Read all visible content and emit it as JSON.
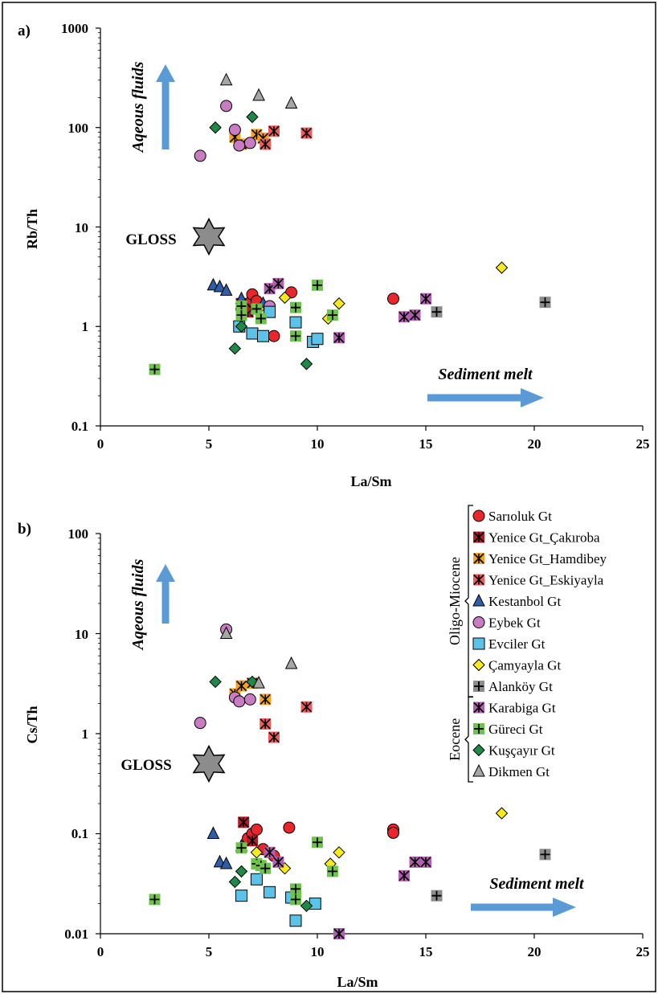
{
  "panels": {
    "a": {
      "label": "a)",
      "xlabel": "La/Sm",
      "ylabel": "Rb/Th",
      "xticks": [
        "0",
        "5",
        "10",
        "15",
        "20",
        "25"
      ],
      "yticks": [
        "1000",
        "100",
        "10",
        "1",
        "0.1"
      ]
    },
    "b": {
      "label": "b)",
      "xlabel": "La/Sm",
      "ylabel": "Cs/Th",
      "xticks": [
        "0",
        "5",
        "10",
        "15",
        "20",
        "25"
      ],
      "yticks": [
        "100",
        "10",
        "1",
        "0.1",
        "0.01"
      ]
    }
  },
  "annotations": {
    "aqueous": "Aqeous fluids",
    "sediment": "Sediment melt",
    "gloss": "GLOSS"
  },
  "colors": {
    "arrow": "#5b9bd5",
    "gloss": "#8c8c8c"
  },
  "legend": {
    "groups": [
      {
        "name": "Oligo-Miocene",
        "items": [
          0,
          1,
          2,
          3,
          4,
          5,
          6,
          7,
          8
        ]
      },
      {
        "name": "Eocene",
        "items": [
          9,
          10,
          11,
          12
        ]
      }
    ]
  },
  "chart_data": [
    {
      "type": "scatter",
      "xlabel": "La/Sm",
      "ylabel": "Rb/Th",
      "xlim": [
        0,
        25
      ],
      "ylim": [
        0.1,
        1000
      ],
      "yscale": "log",
      "reference": {
        "name": "GLOSS",
        "x": 5,
        "y": 8
      },
      "series": [
        {
          "name": "Sarıoluk Gt",
          "marker": "circle",
          "color": "#e8262b",
          "points": [
            [
              6.5,
              1.5
            ],
            [
              6.8,
              1.7
            ],
            [
              7.0,
              2.1
            ],
            [
              7.2,
              1.8
            ],
            [
              8.0,
              0.8
            ],
            [
              8.8,
              2.2
            ],
            [
              13.5,
              1.9
            ]
          ]
        },
        {
          "name": "Yenice Gt_Çakıroba",
          "marker": "xsquare",
          "color": "#b01e23",
          "points": [
            [
              6.5,
              1.7
            ],
            [
              6.8,
              1.4
            ],
            [
              7.0,
              1.5
            ]
          ]
        },
        {
          "name": "Yenice Gt_Hamdibey",
          "marker": "xsquare",
          "color": "#f6a21a",
          "points": [
            [
              6.2,
              80
            ],
            [
              6.5,
              68
            ],
            [
              7.2,
              85
            ],
            [
              7.5,
              78
            ]
          ]
        },
        {
          "name": "Yenice Gt_Eskiyayla",
          "marker": "xsquare",
          "color": "#ef5b5b",
          "points": [
            [
              7.6,
              68
            ],
            [
              8.0,
              92
            ],
            [
              9.5,
              88
            ]
          ]
        },
        {
          "name": "Kestanbol Gt",
          "marker": "triangle",
          "color": "#2f5ea8",
          "points": [
            [
              5.2,
              2.6
            ],
            [
              5.5,
              2.5
            ],
            [
              5.8,
              2.3
            ],
            [
              6.5,
              1.9
            ],
            [
              7.5,
              1.7
            ]
          ]
        },
        {
          "name": "Eybek Gt",
          "marker": "circle",
          "color": "#c87dc2",
          "points": [
            [
              4.6,
              52
            ],
            [
              5.8,
              165
            ],
            [
              6.2,
              95
            ],
            [
              6.4,
              66
            ],
            [
              6.9,
              70
            ],
            [
              7.8,
              1.6
            ]
          ]
        },
        {
          "name": "Evciler Gt",
          "marker": "square",
          "color": "#5bc3e8",
          "points": [
            [
              6.4,
              1.0
            ],
            [
              7.0,
              0.85
            ],
            [
              7.5,
              0.8
            ],
            [
              7.8,
              1.4
            ],
            [
              9.0,
              1.1
            ],
            [
              9.8,
              0.7
            ],
            [
              10.0,
              0.75
            ]
          ]
        },
        {
          "name": "Çamyayla Gt",
          "marker": "diamond",
          "color": "#f7ea1d",
          "points": [
            [
              7.3,
              1.5
            ],
            [
              8.5,
              1.95
            ],
            [
              10.5,
              1.2
            ],
            [
              11.0,
              1.7
            ],
            [
              18.5,
              3.9
            ]
          ]
        },
        {
          "name": "Alanköy Gt",
          "marker": "plussquare",
          "color": "#8c8c8c",
          "points": [
            [
              15.5,
              1.4
            ],
            [
              20.5,
              1.75
            ]
          ]
        },
        {
          "name": "Karabiga Gt",
          "marker": "xsquare",
          "color": "#b25fb0",
          "points": [
            [
              7.8,
              2.4
            ],
            [
              8.2,
              2.7
            ],
            [
              11.0,
              0.77
            ],
            [
              14.0,
              1.25
            ],
            [
              14.5,
              1.3
            ],
            [
              15.0,
              1.9
            ]
          ]
        },
        {
          "name": "Güreci Gt",
          "marker": "plussquare",
          "color": "#70c24f",
          "points": [
            [
              2.5,
              0.37
            ],
            [
              6.5,
              1.6
            ],
            [
              6.5,
              1.3
            ],
            [
              7.2,
              1.5
            ],
            [
              7.4,
              1.2
            ],
            [
              9.0,
              1.55
            ],
            [
              9.0,
              0.8
            ],
            [
              10.0,
              2.6
            ],
            [
              10.7,
              1.3
            ]
          ]
        },
        {
          "name": "Kuşçayır Gt",
          "marker": "diamond",
          "color": "#1f8a48",
          "points": [
            [
              5.3,
              100
            ],
            [
              6.2,
              0.6
            ],
            [
              6.5,
              1.0
            ],
            [
              7.0,
              128
            ],
            [
              9.5,
              0.42
            ]
          ]
        },
        {
          "name": "Dikmen Gt",
          "marker": "triangle",
          "color": "#a6a6a6",
          "points": [
            [
              5.8,
              300
            ],
            [
              7.3,
              210
            ],
            [
              8.8,
              175
            ]
          ]
        }
      ]
    },
    {
      "type": "scatter",
      "xlabel": "La/Sm",
      "ylabel": "Cs/Th",
      "xlim": [
        0,
        25
      ],
      "ylim": [
        0.01,
        100
      ],
      "yscale": "log",
      "reference": {
        "name": "GLOSS",
        "x": 5,
        "y": 0.5
      },
      "series": [
        {
          "name": "Sarıoluk Gt",
          "marker": "circle",
          "color": "#e8262b",
          "points": [
            [
              6.8,
              0.09
            ],
            [
              7.0,
              0.1
            ],
            [
              7.2,
              0.11
            ],
            [
              7.5,
              0.07
            ],
            [
              8.0,
              0.06
            ],
            [
              8.7,
              0.115
            ],
            [
              13.5,
              0.11
            ],
            [
              13.5,
              0.102
            ]
          ]
        },
        {
          "name": "Yenice Gt_Çakıroba",
          "marker": "xsquare",
          "color": "#b01e23",
          "points": [
            [
              6.6,
              0.13
            ],
            [
              7.0,
              0.085
            ]
          ]
        },
        {
          "name": "Yenice Gt_Hamdibey",
          "marker": "xsquare",
          "color": "#f6a21a",
          "points": [
            [
              6.2,
              2.5
            ],
            [
              6.5,
              3.0
            ],
            [
              7.0,
              3.2
            ],
            [
              7.6,
              2.2
            ]
          ]
        },
        {
          "name": "Yenice Gt_Eskiyayla",
          "marker": "xsquare",
          "color": "#ef5b5b",
          "points": [
            [
              7.6,
              1.25
            ],
            [
              8.0,
              0.92
            ],
            [
              9.5,
              1.85
            ]
          ]
        },
        {
          "name": "Kestanbol Gt",
          "marker": "triangle",
          "color": "#2f5ea8",
          "points": [
            [
              5.2,
              0.1
            ],
            [
              5.5,
              0.052
            ],
            [
              5.8,
              0.05
            ],
            [
              6.5,
              0.075
            ]
          ]
        },
        {
          "name": "Eybek Gt",
          "marker": "circle",
          "color": "#c87dc2",
          "points": [
            [
              4.6,
              1.28
            ],
            [
              5.8,
              11
            ],
            [
              6.2,
              2.3
            ],
            [
              6.4,
              2.1
            ],
            [
              6.9,
              2.2
            ]
          ]
        },
        {
          "name": "Evciler Gt",
          "marker": "square",
          "color": "#5bc3e8",
          "points": [
            [
              6.5,
              0.024
            ],
            [
              7.2,
              0.035
            ],
            [
              7.8,
              0.026
            ],
            [
              8.8,
              0.023
            ],
            [
              9.0,
              0.0135
            ],
            [
              9.9,
              0.02
            ]
          ]
        },
        {
          "name": "Çamyayla Gt",
          "marker": "diamond",
          "color": "#f7ea1d",
          "points": [
            [
              7.2,
              0.065
            ],
            [
              8.5,
              0.045
            ],
            [
              10.6,
              0.05
            ],
            [
              11.0,
              0.065
            ],
            [
              18.5,
              0.16
            ]
          ]
        },
        {
          "name": "Alanköy Gt",
          "marker": "plussquare",
          "color": "#8c8c8c",
          "points": [
            [
              15.5,
              0.024
            ],
            [
              20.5,
              0.062
            ]
          ]
        },
        {
          "name": "Karabiga Gt",
          "marker": "xsquare",
          "color": "#b25fb0",
          "points": [
            [
              7.8,
              0.065
            ],
            [
              8.2,
              0.052
            ],
            [
              11.0,
              0.01
            ],
            [
              14.0,
              0.038
            ],
            [
              14.5,
              0.052
            ],
            [
              15.0,
              0.052
            ]
          ]
        },
        {
          "name": "Güreci Gt",
          "marker": "plussquare",
          "color": "#70c24f",
          "points": [
            [
              2.5,
              0.022
            ],
            [
              6.5,
              0.072
            ],
            [
              7.2,
              0.05
            ],
            [
              7.4,
              0.048
            ],
            [
              7.6,
              0.045
            ],
            [
              9.0,
              0.028
            ],
            [
              9.0,
              0.022
            ],
            [
              10.0,
              0.082
            ],
            [
              10.7,
              0.042
            ]
          ]
        },
        {
          "name": "Kuşçayır Gt",
          "marker": "diamond",
          "color": "#1f8a48",
          "points": [
            [
              5.3,
              3.3
            ],
            [
              6.2,
              0.033
            ],
            [
              6.5,
              0.042
            ],
            [
              7.0,
              3.3
            ],
            [
              9.5,
              0.019
            ]
          ]
        },
        {
          "name": "Dikmen Gt",
          "marker": "triangle",
          "color": "#a6a6a6",
          "points": [
            [
              5.8,
              10
            ],
            [
              7.3,
              3.2
            ],
            [
              8.8,
              5.0
            ]
          ]
        }
      ]
    }
  ]
}
